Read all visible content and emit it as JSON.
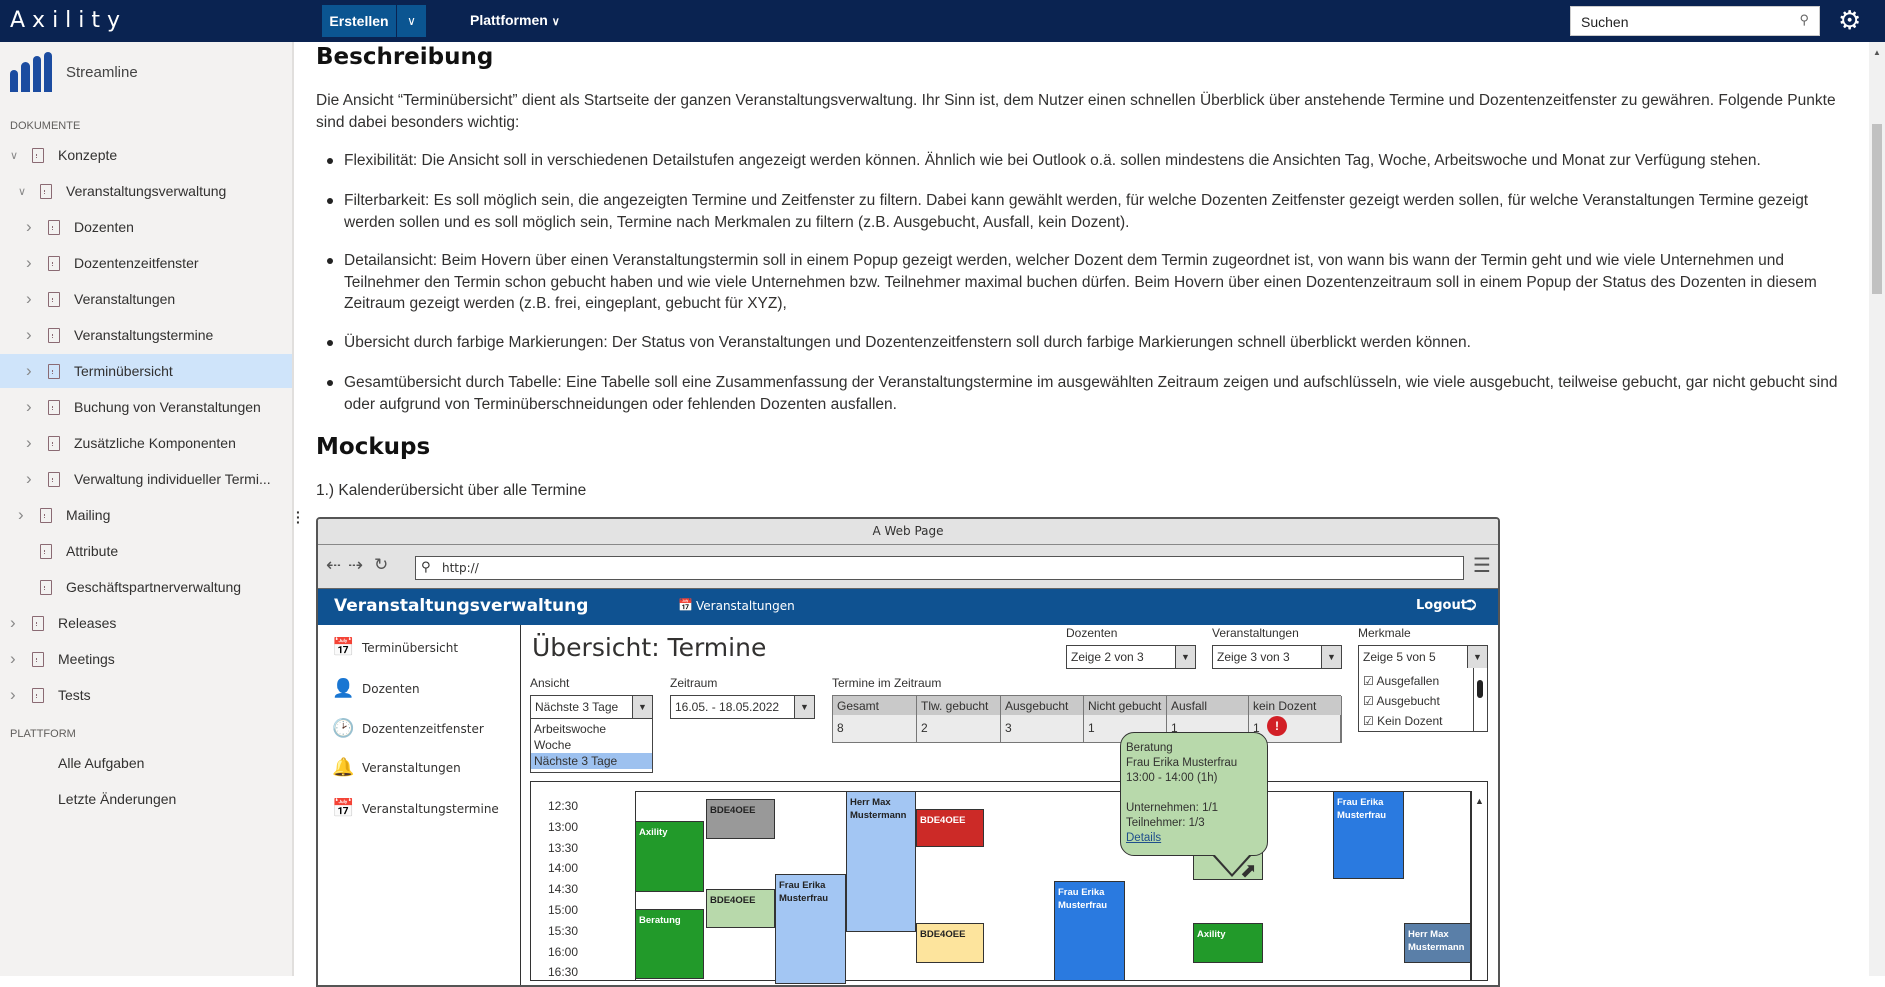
{
  "header": {
    "brand": "Axility",
    "create_label": "Erstellen",
    "platforms_label": "Plattformen",
    "search_placeholder": "Suchen"
  },
  "sidebar": {
    "title": "Streamline",
    "documents_heading": "DOKUMENTE",
    "platform_heading": "PLATTFORM",
    "items": [
      {
        "label": "Konzepte",
        "level": 0,
        "expanded": true
      },
      {
        "label": "Veranstaltungsverwaltung",
        "level": 1,
        "expanded": true
      },
      {
        "label": "Dozenten",
        "level": 2
      },
      {
        "label": "Dozentenzeitfenster",
        "level": 2
      },
      {
        "label": "Veranstaltungen",
        "level": 2
      },
      {
        "label": "Veranstaltungstermine",
        "level": 2
      },
      {
        "label": "Terminübersicht",
        "level": 2,
        "selected": true
      },
      {
        "label": "Buchung von Veranstaltungen",
        "level": 2
      },
      {
        "label": "Zusätzliche Komponenten",
        "level": 2
      },
      {
        "label": "Verwaltung individueller Termi...",
        "level": 2
      },
      {
        "label": "Mailing",
        "level": 1
      },
      {
        "label": "Attribute",
        "level": 1
      },
      {
        "label": "Geschäftspartnerverwaltung",
        "level": 1
      },
      {
        "label": "Releases",
        "level": 0
      },
      {
        "label": "Meetings",
        "level": 0
      },
      {
        "label": "Tests",
        "level": 0
      }
    ],
    "platform_items": [
      "Alle Aufgaben",
      "Letzte Änderungen"
    ]
  },
  "content": {
    "heading": "Beschreibung",
    "intro": "Die Ansicht “Terminübersicht” dient als Startseite der ganzen Veranstaltungsverwaltung. Ihr Sinn ist, dem Nutzer einen schnellen Überblick über anstehende Termine und Dozentenzeitfenster zu gewähren. Folgende Punkte sind dabei besonders wichtig:",
    "bullets": [
      "Flexibilität: Die Ansicht soll in verschiedenen Detailstufen angezeigt werden können. Ähnlich wie bei Outlook o.ä. sollen mindestens die Ansichten Tag, Woche, Arbeitswoche und Monat zur Verfügung stehen.",
      "Filterbarkeit: Es soll möglich sein, die angezeigten Termine und Zeitfenster zu filtern. Dabei kann gewählt werden, für welche Dozenten Zeitfenster gezeigt werden sollen, für welche Veranstaltungen Termine gezeigt werden sollen und es soll möglich sein, Termine nach Merkmalen zu filtern (z.B. Ausgebucht, Ausfall, kein Dozent).",
      "Detailansicht: Beim Hovern über einen Veranstaltungstermin soll in einem Popup gezeigt werden, welcher Dozent dem Termin zugeordnet ist, von wann bis wann der Termin geht und wie viele Unternehmen und Teilnehmer den Termin schon gebucht haben und wie viele Unternehmen bzw. Teilnehmer maximal buchen dürfen. Beim Hovern über einen Dozentenzeitraum soll in einem Popup der Status des Dozenten in diesem Zeitraum gezeigt werden (z.B. frei, eingeplant, gebucht für XYZ),",
      "Übersicht durch farbige Markierungen: Der Status von Veranstaltungen und Dozentenzeitfenstern soll durch farbige Markierungen schnell überblickt werden können.",
      "Gesamtübersicht durch Tabelle: Eine Tabelle soll eine Zusammenfassung der Veranstaltungstermine im ausgewählten Zeitraum zeigen und aufschlüsseln, wie viele ausgebucht, teilweise gebucht, gar nicht gebucht sind oder aufgrund von Terminüberschneidungen oder fehlenden Dozenten ausfallen."
    ],
    "mockups_heading": "Mockups",
    "mockup_caption": "1.) Kalenderübersicht über alle Termine"
  },
  "mockup": {
    "window_title": "A Web Page",
    "url": "http://",
    "app_title": "Veranstaltungsverwaltung",
    "nav_link": "Veranstaltungen",
    "logout": "Logout",
    "nav": [
      "Terminübersicht",
      "Dozenten",
      "Dozentenzeitfenster",
      "Veranstaltungen",
      "Veranstaltungstermine"
    ],
    "page_title": "Übersicht: Termine",
    "dozenten": {
      "label": "Dozenten",
      "value": "Zeige 2 von 3"
    },
    "veranstaltungen": {
      "label": "Veranstaltungen",
      "value": "Zeige 3 von 3"
    },
    "merkmale": {
      "label": "Merkmale",
      "value": "Zeige 5 von 5",
      "options": [
        "Ausgefallen",
        "Ausgebucht",
        "Kein Dozent"
      ]
    },
    "ansicht": {
      "label": "Ansicht",
      "value": "Nächste 3 Tage",
      "options": [
        "Arbeitswoche",
        "Woche",
        "Nächste 3 Tage"
      ]
    },
    "zeitraum": {
      "label": "Zeitraum",
      "value": "16.05. - 18.05.2022"
    },
    "summary": {
      "label": "Termine im Zeitraum",
      "headers": [
        "Gesamt",
        "Tlw. gebucht",
        "Ausgebucht",
        "Nicht gebucht",
        "Ausfall",
        "kein Dozent"
      ],
      "values": [
        "8",
        "2",
        "3",
        "1",
        "1",
        "1"
      ]
    },
    "times": [
      "12:30",
      "13:00",
      "13:30",
      "14:00",
      "14:30",
      "15:00",
      "15:30",
      "16:00",
      "16:30"
    ],
    "events": [
      {
        "label": "Axility",
        "color": "#229a2a",
        "text": "#ffffff"
      },
      {
        "label": "BDE4OEE",
        "color": "#999999",
        "text": "#222222"
      },
      {
        "label": "Herr Max Mustermann",
        "color": "#a3c6f3",
        "text": "#222222"
      },
      {
        "label": "BDE4OEE",
        "color": "#cc2a27",
        "text": "#ffffff"
      },
      {
        "label": "BDE4OEE",
        "color": "#b8d9ab",
        "text": "#222222"
      },
      {
        "label": "Frau Erika Musterfrau",
        "color": "#a3c6f3",
        "text": "#222222"
      },
      {
        "label": "Beratung",
        "color": "#229a2a",
        "text": "#ffffff"
      },
      {
        "label": "BDE4OEE",
        "color": "#fde49d",
        "text": "#222222"
      },
      {
        "label": "Frau Erika Musterfrau",
        "color": "#2a7ae0",
        "text": "#ffffff"
      },
      {
        "label": "",
        "color": "#b8d9ab",
        "text": "#222222"
      },
      {
        "label": "Frau Erika Musterfrau",
        "color": "#2a7ae0",
        "text": "#ffffff"
      },
      {
        "label": "Axility",
        "color": "#229a2a",
        "text": "#ffffff"
      },
      {
        "label": "Herr Max Mustermann",
        "color": "#5a7fa8",
        "text": "#ffffff"
      }
    ],
    "tooltip": {
      "title": "Beratung",
      "lecturer": "Frau Erika Musterfrau",
      "time": "13:00 - 14:00 (1h)",
      "companies": "Unternehmen: 1/1",
      "participants": "Teilnehmer: 1/3",
      "link": "Details"
    }
  }
}
